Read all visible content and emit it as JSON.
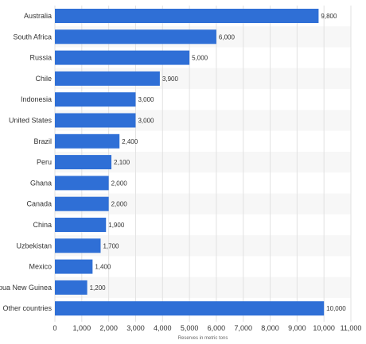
{
  "chart_data": {
    "type": "bar",
    "orientation": "horizontal",
    "categories": [
      "Australia",
      "South Africa",
      "Russia",
      "Chile",
      "Indonesia",
      "United States",
      "Brazil",
      "Peru",
      "Ghana",
      "Canada",
      "China",
      "Uzbekistan",
      "Mexico",
      "Papua New Guinea",
      "Other countries"
    ],
    "values": [
      9800,
      6000,
      5000,
      3900,
      3000,
      3000,
      2400,
      2100,
      2000,
      2000,
      1900,
      1700,
      1400,
      1200,
      10000
    ],
    "value_labels": [
      "9,800",
      "6,000",
      "5,000",
      "3,900",
      "3,000",
      "3,000",
      "2,400",
      "2,100",
      "2,000",
      "2,000",
      "1,900",
      "1,700",
      "1,400",
      "1,200",
      "10,000"
    ],
    "xticks": [
      0,
      1000,
      2000,
      3000,
      4000,
      5000,
      6000,
      7000,
      8000,
      9000,
      10000,
      11000
    ],
    "xtick_labels": [
      "0",
      "1,000",
      "2,000",
      "3,000",
      "4,000",
      "5,000",
      "6,000",
      "7,000",
      "8,000",
      "9,000",
      "10,000",
      "11,000"
    ],
    "xlim": [
      0,
      11000
    ],
    "xlabel": "Reserves in metric tons",
    "ylabel": "",
    "title": "",
    "grid": true,
    "bar_color": "#2f6fd6",
    "stripe_color": "#f7f7f7",
    "grid_color": "#e2e2e2"
  }
}
